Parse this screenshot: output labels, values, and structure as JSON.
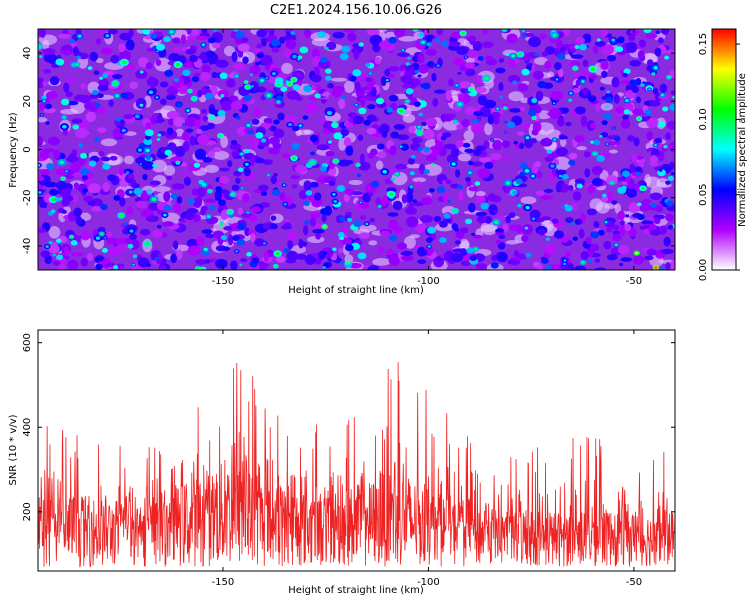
{
  "title": "C2E1.2024.156.10.06.G26",
  "chart_data": [
    {
      "type": "heatmap",
      "xlabel": "Height of straight line (km)",
      "ylabel": "Frequency (Hz)",
      "xlim": [
        -195,
        -40
      ],
      "ylim": [
        -50,
        50
      ],
      "x_ticks": [
        -150,
        -100,
        -50
      ],
      "y_ticks": [
        -40,
        -20,
        0,
        20,
        40
      ],
      "colorbar": {
        "label": "Normalized spectral amplitude",
        "range": [
          0,
          0.16
        ],
        "ticks": [
          "0.00",
          "0.05",
          "0.10",
          "0.15"
        ],
        "colors": [
          "#ffffff",
          "#b000ff",
          "#0000ff",
          "#00ffff",
          "#00ff00",
          "#ffff00",
          "#ff0000"
        ]
      },
      "description_values": "dense speckle field, background ~0.01-0.03 (purple/blue), many peaks 0.05-0.09 (cyan/green), isolated peaks up to ~0.15"
    },
    {
      "type": "line",
      "xlabel": "Height of straight line (km)",
      "ylabel": "SNR (10 * v/v)",
      "xlim": [
        -195,
        -40
      ],
      "ylim": [
        60,
        630
      ],
      "x_ticks": [
        -150,
        -100,
        -50
      ],
      "y_ticks": [
        200,
        400,
        600
      ],
      "series": [
        {
          "color": "#ee2222",
          "x": [
            -195,
            -185,
            -175,
            -165,
            -155,
            -150,
            -145,
            -140,
            -135,
            -125,
            -115,
            -110,
            -105,
            -100,
            -95,
            -90,
            -85,
            -80,
            -75,
            -70,
            -60,
            -50,
            -40
          ],
          "y": [
            160,
            155,
            150,
            160,
            175,
            195,
            190,
            170,
            165,
            160,
            170,
            185,
            180,
            160,
            155,
            150,
            145,
            140,
            140,
            135,
            140,
            135,
            135
          ],
          "max": [
            460,
            380,
            360,
            390,
            520,
            630,
            600,
            470,
            440,
            400,
            560,
            580,
            560,
            480,
            430,
            420,
            420,
            370,
            350,
            380,
            390,
            360,
            350
          ]
        }
      ]
    }
  ]
}
